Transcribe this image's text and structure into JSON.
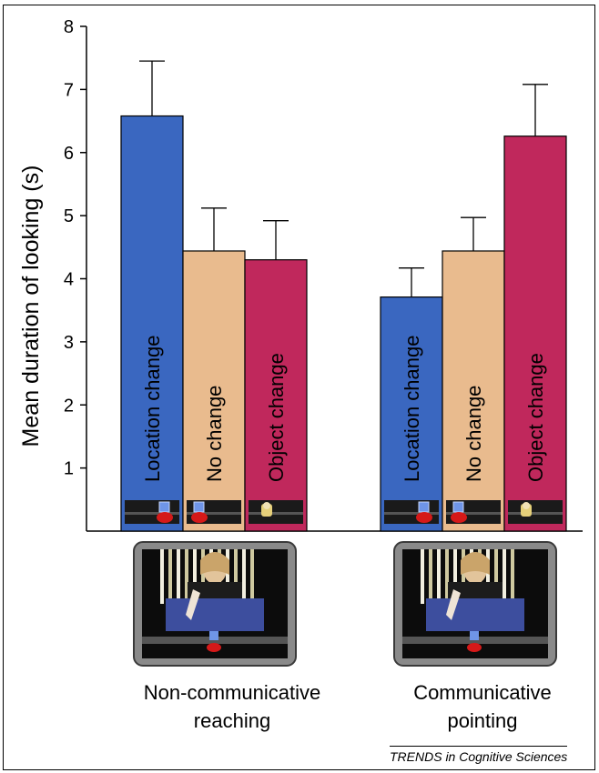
{
  "chart_data": {
    "type": "bar",
    "ylabel": "Mean duration of looking (s)",
    "ylim": [
      0,
      8
    ],
    "yticks": [
      1,
      2,
      3,
      4,
      5,
      6,
      7,
      8
    ],
    "groups": [
      {
        "label": "Non-communicative reaching",
        "bars": [
          {
            "label": "Location change",
            "value": 6.58,
            "error": 0.87
          },
          {
            "label": "No change",
            "value": 4.44,
            "error": 0.68
          },
          {
            "label": "Object change",
            "value": 4.3,
            "error": 0.62
          }
        ]
      },
      {
        "label": "Communicative pointing",
        "bars": [
          {
            "label": "Location change",
            "value": 3.71,
            "error": 0.46
          },
          {
            "label": "No change",
            "value": 4.44,
            "error": 0.53
          },
          {
            "label": "Object change",
            "value": 6.26,
            "error": 0.82
          }
        ]
      }
    ],
    "colors": {
      "Location change": "#3a67c0",
      "No change": "#e9bb8e",
      "Object change": "#c0285c"
    }
  },
  "group_labels": {
    "reaching": [
      "Non-communicative",
      "reaching"
    ],
    "pointing": [
      "Communicative",
      "pointing"
    ]
  },
  "credit": "TRENDS in Cognitive Sciences"
}
